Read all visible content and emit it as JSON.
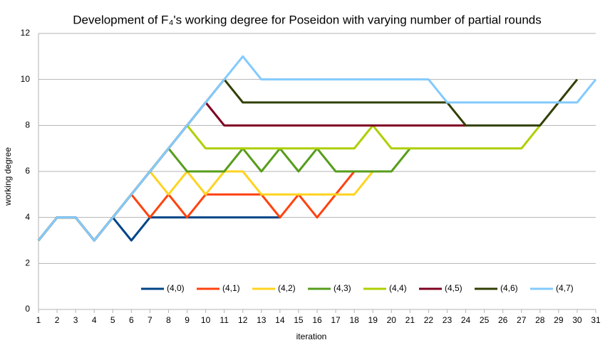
{
  "chart_data": {
    "type": "line",
    "title": "Development of F₄'s working degree for Poseidon with varying number of partial rounds",
    "xlabel": "iteration",
    "ylabel": "working degree",
    "x": [
      1,
      2,
      3,
      4,
      5,
      6,
      7,
      8,
      9,
      10,
      11,
      12,
      13,
      14,
      15,
      16,
      17,
      18,
      19,
      20,
      21,
      22,
      23,
      24,
      25,
      26,
      27,
      28,
      29,
      30,
      31
    ],
    "xlim": [
      1,
      31
    ],
    "ylim": [
      0,
      12
    ],
    "yticks": [
      0,
      2,
      4,
      6,
      8,
      10,
      12
    ],
    "grid": true,
    "legend": "bottom",
    "series": [
      {
        "name": "(4,0)",
        "color": "#004586",
        "values": [
          3,
          4,
          4,
          3,
          4,
          3,
          4,
          4,
          4,
          4,
          4,
          4,
          4,
          4,
          null,
          null,
          null,
          null,
          null,
          null,
          null,
          null,
          null,
          null,
          null,
          null,
          null,
          null,
          null,
          null,
          null
        ]
      },
      {
        "name": "(4,1)",
        "color": "#ff420e",
        "values": [
          3,
          4,
          4,
          3,
          4,
          5,
          4,
          5,
          4,
          5,
          5,
          5,
          5,
          4,
          5,
          4,
          5,
          6,
          null,
          null,
          null,
          null,
          null,
          null,
          null,
          null,
          null,
          null,
          null,
          null,
          null
        ]
      },
      {
        "name": "(4,2)",
        "color": "#ffd320",
        "values": [
          3,
          4,
          4,
          3,
          4,
          5,
          6,
          5,
          6,
          5,
          6,
          6,
          5,
          5,
          5,
          5,
          5,
          5,
          6,
          null,
          null,
          null,
          null,
          null,
          null,
          null,
          null,
          null,
          null,
          null,
          null
        ]
      },
      {
        "name": "(4,3)",
        "color": "#579d1c",
        "values": [
          3,
          4,
          4,
          3,
          4,
          5,
          6,
          7,
          6,
          6,
          6,
          7,
          6,
          7,
          6,
          7,
          6,
          6,
          6,
          6,
          7,
          null,
          null,
          null,
          null,
          null,
          null,
          null,
          null,
          null,
          null
        ]
      },
      {
        "name": "(4,4)",
        "color": "#aecf00",
        "values": [
          3,
          4,
          4,
          3,
          4,
          5,
          6,
          7,
          8,
          7,
          7,
          7,
          7,
          7,
          7,
          7,
          7,
          7,
          8,
          7,
          7,
          7,
          7,
          7,
          7,
          7,
          7,
          8,
          null,
          null,
          null
        ]
      },
      {
        "name": "(4,5)",
        "color": "#7e0021",
        "values": [
          3,
          4,
          4,
          3,
          4,
          5,
          6,
          7,
          8,
          9,
          8,
          8,
          8,
          8,
          8,
          8,
          8,
          8,
          8,
          8,
          8,
          8,
          8,
          8,
          null,
          null,
          null,
          null,
          null,
          null,
          null
        ]
      },
      {
        "name": "(4,6)",
        "color": "#314004",
        "values": [
          3,
          4,
          4,
          3,
          4,
          5,
          6,
          7,
          8,
          9,
          10,
          9,
          9,
          9,
          9,
          9,
          9,
          9,
          9,
          9,
          9,
          9,
          9,
          8,
          8,
          8,
          8,
          8,
          9,
          10,
          null
        ]
      },
      {
        "name": "(4,7)",
        "color": "#83caff",
        "values": [
          3,
          4,
          4,
          3,
          4,
          5,
          6,
          7,
          8,
          9,
          10,
          11,
          10,
          10,
          10,
          10,
          10,
          10,
          10,
          10,
          10,
          10,
          9,
          9,
          9,
          9,
          9,
          9,
          9,
          9,
          10
        ]
      }
    ]
  }
}
